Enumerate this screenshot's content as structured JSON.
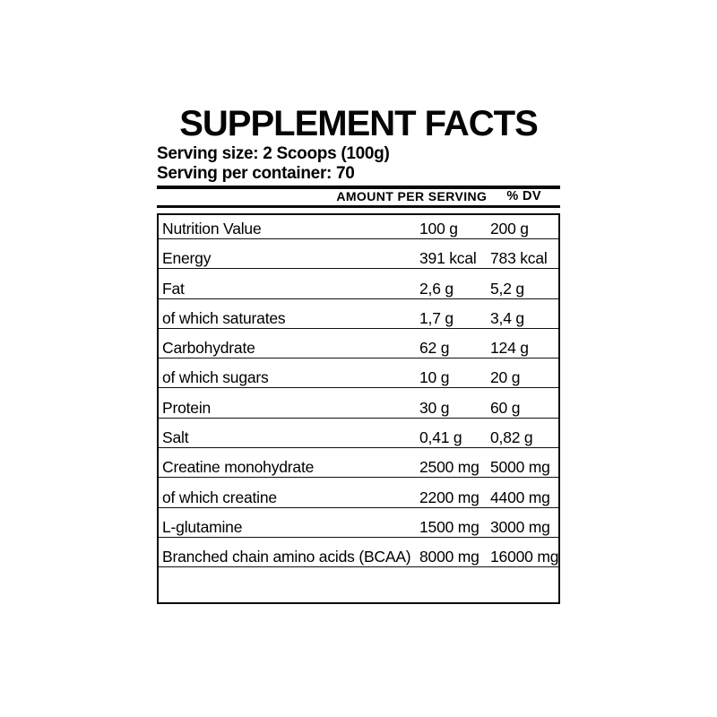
{
  "title": "SUPPLEMENT FACTS",
  "serving": {
    "size_label": "Serving size: 2 Scoops (100g)",
    "container_label": "Serving per container: 70"
  },
  "table": {
    "headers": {
      "amount": "AMOUNT PER SERVING",
      "dv": "% DV"
    },
    "rows": [
      {
        "label": "Nutrition Value",
        "amount": "100 g",
        "dv": "200 g"
      },
      {
        "label": "Energy",
        "amount": "391 kcal",
        "dv": "783 kcal"
      },
      {
        "label": "Fat",
        "amount": "2,6 g",
        "dv": "5,2 g"
      },
      {
        "label": "of which saturates",
        "amount": "1,7 g",
        "dv": "3,4 g"
      },
      {
        "label": "Carbohydrate",
        "amount": "62 g",
        "dv": "124 g"
      },
      {
        "label": "of which sugars",
        "amount": "10 g",
        "dv": "20 g"
      },
      {
        "label": "Protein",
        "amount": "30 g",
        "dv": "60 g"
      },
      {
        "label": "Salt",
        "amount": "0,41 g",
        "dv": "0,82 g"
      },
      {
        "label": "Creatine monohydrate",
        "amount": "2500 mg",
        "dv": "5000 mg"
      },
      {
        "label": "of which creatine",
        "amount": "2200 mg",
        "dv": "4400 mg"
      },
      {
        "label": "L-glutamine",
        "amount": "1500 mg",
        "dv": "3000 mg"
      },
      {
        "label": "Branched chain amino acids (BCAA)",
        "amount": "8000 mg",
        "dv": "16000 mg"
      }
    ]
  },
  "colors": {
    "text": "#000000",
    "background": "#ffffff"
  }
}
